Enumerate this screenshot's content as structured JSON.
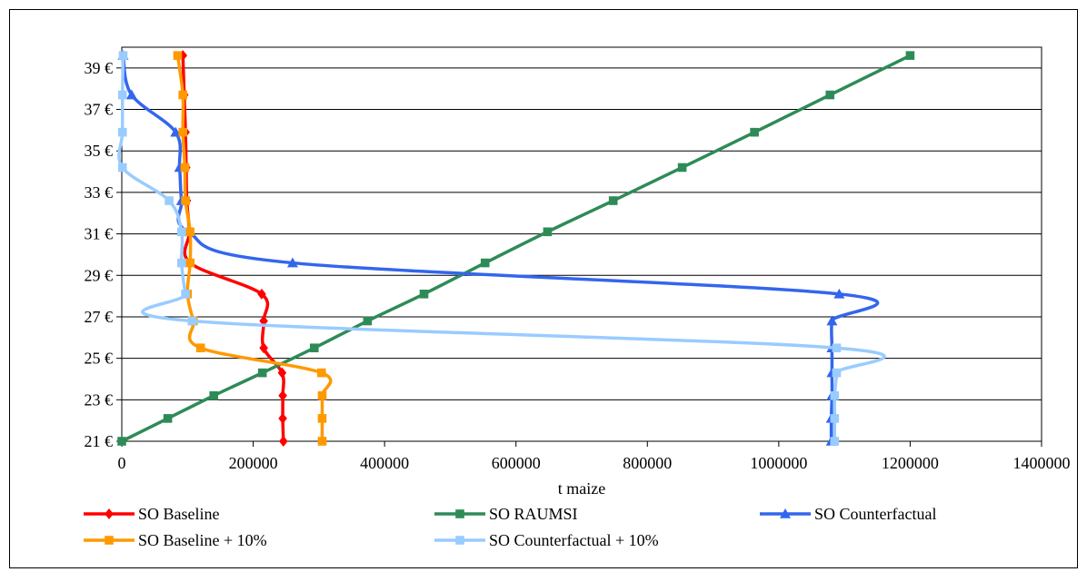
{
  "chart_data": {
    "type": "line",
    "xlabel": "t maize",
    "ylabel": "",
    "xlim": [
      0,
      1400000
    ],
    "ylim": [
      21,
      40
    ],
    "x_ticks": [
      0,
      200000,
      400000,
      600000,
      800000,
      1000000,
      1200000,
      1400000
    ],
    "x_tick_labels": [
      "0",
      "200000",
      "400000",
      "600000",
      "800000",
      "1000000",
      "1200000",
      "1400000"
    ],
    "y_ticks": [
      21,
      23,
      25,
      27,
      29,
      31,
      33,
      35,
      37,
      39
    ],
    "y_tick_labels": [
      "21 €",
      "23 €",
      "25 €",
      "27 €",
      "29 €",
      "31 €",
      "33 €",
      "35 €",
      "37 €",
      "39 €"
    ],
    "grid": "horizontal",
    "legend_position": "bottom",
    "series": [
      {
        "name": "SO Baseline",
        "color": "#ff0000",
        "marker": "diamond",
        "points": [
          [
            246000,
            21.0
          ],
          [
            245000,
            22.1
          ],
          [
            245000,
            23.2
          ],
          [
            244000,
            24.3
          ],
          [
            216000,
            25.5
          ],
          [
            216000,
            26.8
          ],
          [
            213000,
            28.1
          ],
          [
            104000,
            29.6
          ],
          [
            103000,
            31.1
          ],
          [
            99000,
            32.6
          ],
          [
            98000,
            34.2
          ],
          [
            97000,
            35.9
          ],
          [
            95000,
            37.7
          ],
          [
            93000,
            39.6
          ]
        ]
      },
      {
        "name": "SO RAUMSI",
        "color": "#2e8b57",
        "marker": "square",
        "points": [
          [
            0,
            21.0
          ],
          [
            70000,
            22.1
          ],
          [
            140000,
            23.2
          ],
          [
            214000,
            24.3
          ],
          [
            293000,
            25.5
          ],
          [
            374000,
            26.8
          ],
          [
            460000,
            28.1
          ],
          [
            553000,
            29.6
          ],
          [
            648000,
            31.1
          ],
          [
            748000,
            32.6
          ],
          [
            853000,
            34.2
          ],
          [
            963000,
            35.9
          ],
          [
            1078000,
            37.7
          ],
          [
            1200000,
            39.6
          ]
        ]
      },
      {
        "name": "SO Counterfactual",
        "color": "#3366ee",
        "marker": "triangle",
        "points": [
          [
            1080000,
            21.0
          ],
          [
            1080000,
            22.1
          ],
          [
            1081000,
            23.2
          ],
          [
            1081000,
            24.3
          ],
          [
            1081000,
            25.5
          ],
          [
            1081000,
            26.8
          ],
          [
            1092000,
            28.1
          ],
          [
            260000,
            29.6
          ],
          [
            101000,
            31.1
          ],
          [
            91000,
            32.6
          ],
          [
            88000,
            34.2
          ],
          [
            82000,
            35.9
          ],
          [
            15000,
            37.7
          ],
          [
            2000,
            39.6
          ]
        ]
      },
      {
        "name": "SO Baseline + 10%",
        "color": "#ff9900",
        "marker": "square",
        "points": [
          [
            305000,
            21.0
          ],
          [
            305000,
            22.1
          ],
          [
            305000,
            23.2
          ],
          [
            304000,
            24.3
          ],
          [
            120000,
            25.5
          ],
          [
            109000,
            26.8
          ],
          [
            100000,
            28.1
          ],
          [
            104000,
            29.6
          ],
          [
            104000,
            31.1
          ],
          [
            97000,
            32.6
          ],
          [
            96000,
            34.2
          ],
          [
            93000,
            35.9
          ],
          [
            93000,
            37.7
          ],
          [
            85000,
            39.6
          ]
        ]
      },
      {
        "name": "SO Counterfactual + 10%",
        "color": "#99ccff",
        "marker": "square",
        "points": [
          [
            1085000,
            21.0
          ],
          [
            1085000,
            22.1
          ],
          [
            1085000,
            23.2
          ],
          [
            1088000,
            24.3
          ],
          [
            1088000,
            25.5
          ],
          [
            107000,
            26.8
          ],
          [
            97000,
            28.1
          ],
          [
            91000,
            29.6
          ],
          [
            91000,
            31.1
          ],
          [
            72000,
            32.6
          ],
          [
            1000,
            34.2
          ],
          [
            1000,
            35.9
          ],
          [
            1000,
            37.7
          ],
          [
            2000,
            39.6
          ]
        ]
      }
    ]
  }
}
